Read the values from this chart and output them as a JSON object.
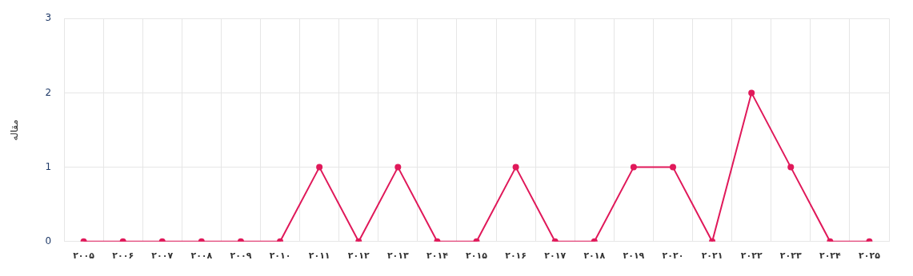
{
  "chart_data": {
    "type": "line",
    "ylabel": "مقاله",
    "categories": [
      "۲۰۰۵",
      "۲۰۰۶",
      "۲۰۰۷",
      "۲۰۰۸",
      "۲۰۰۹",
      "۲۰۱۰",
      "۲۰۱۱",
      "۲۰۱۲",
      "۲۰۱۳",
      "۲۰۱۴",
      "۲۰۱۵",
      "۲۰۱۶",
      "۲۰۱۷",
      "۲۰۱۸",
      "۲۰۱۹",
      "۲۰۲۰",
      "۲۰۲۱",
      "۲۰۲۲",
      "۲۰۲۳",
      "۲۰۲۴",
      "۲۰۲۵"
    ],
    "series": [
      {
        "color": "#e0195a",
        "values": [
          0,
          0,
          0,
          0,
          0,
          0,
          1,
          0,
          1,
          0,
          0,
          1,
          0,
          0,
          1,
          1,
          0,
          2,
          1,
          0,
          0
        ]
      }
    ],
    "ylim": [
      0,
      3
    ],
    "yticks": [
      0,
      1,
      2,
      3
    ],
    "grid": true,
    "marker": "circle",
    "line_style": "solid",
    "legend": false
  }
}
